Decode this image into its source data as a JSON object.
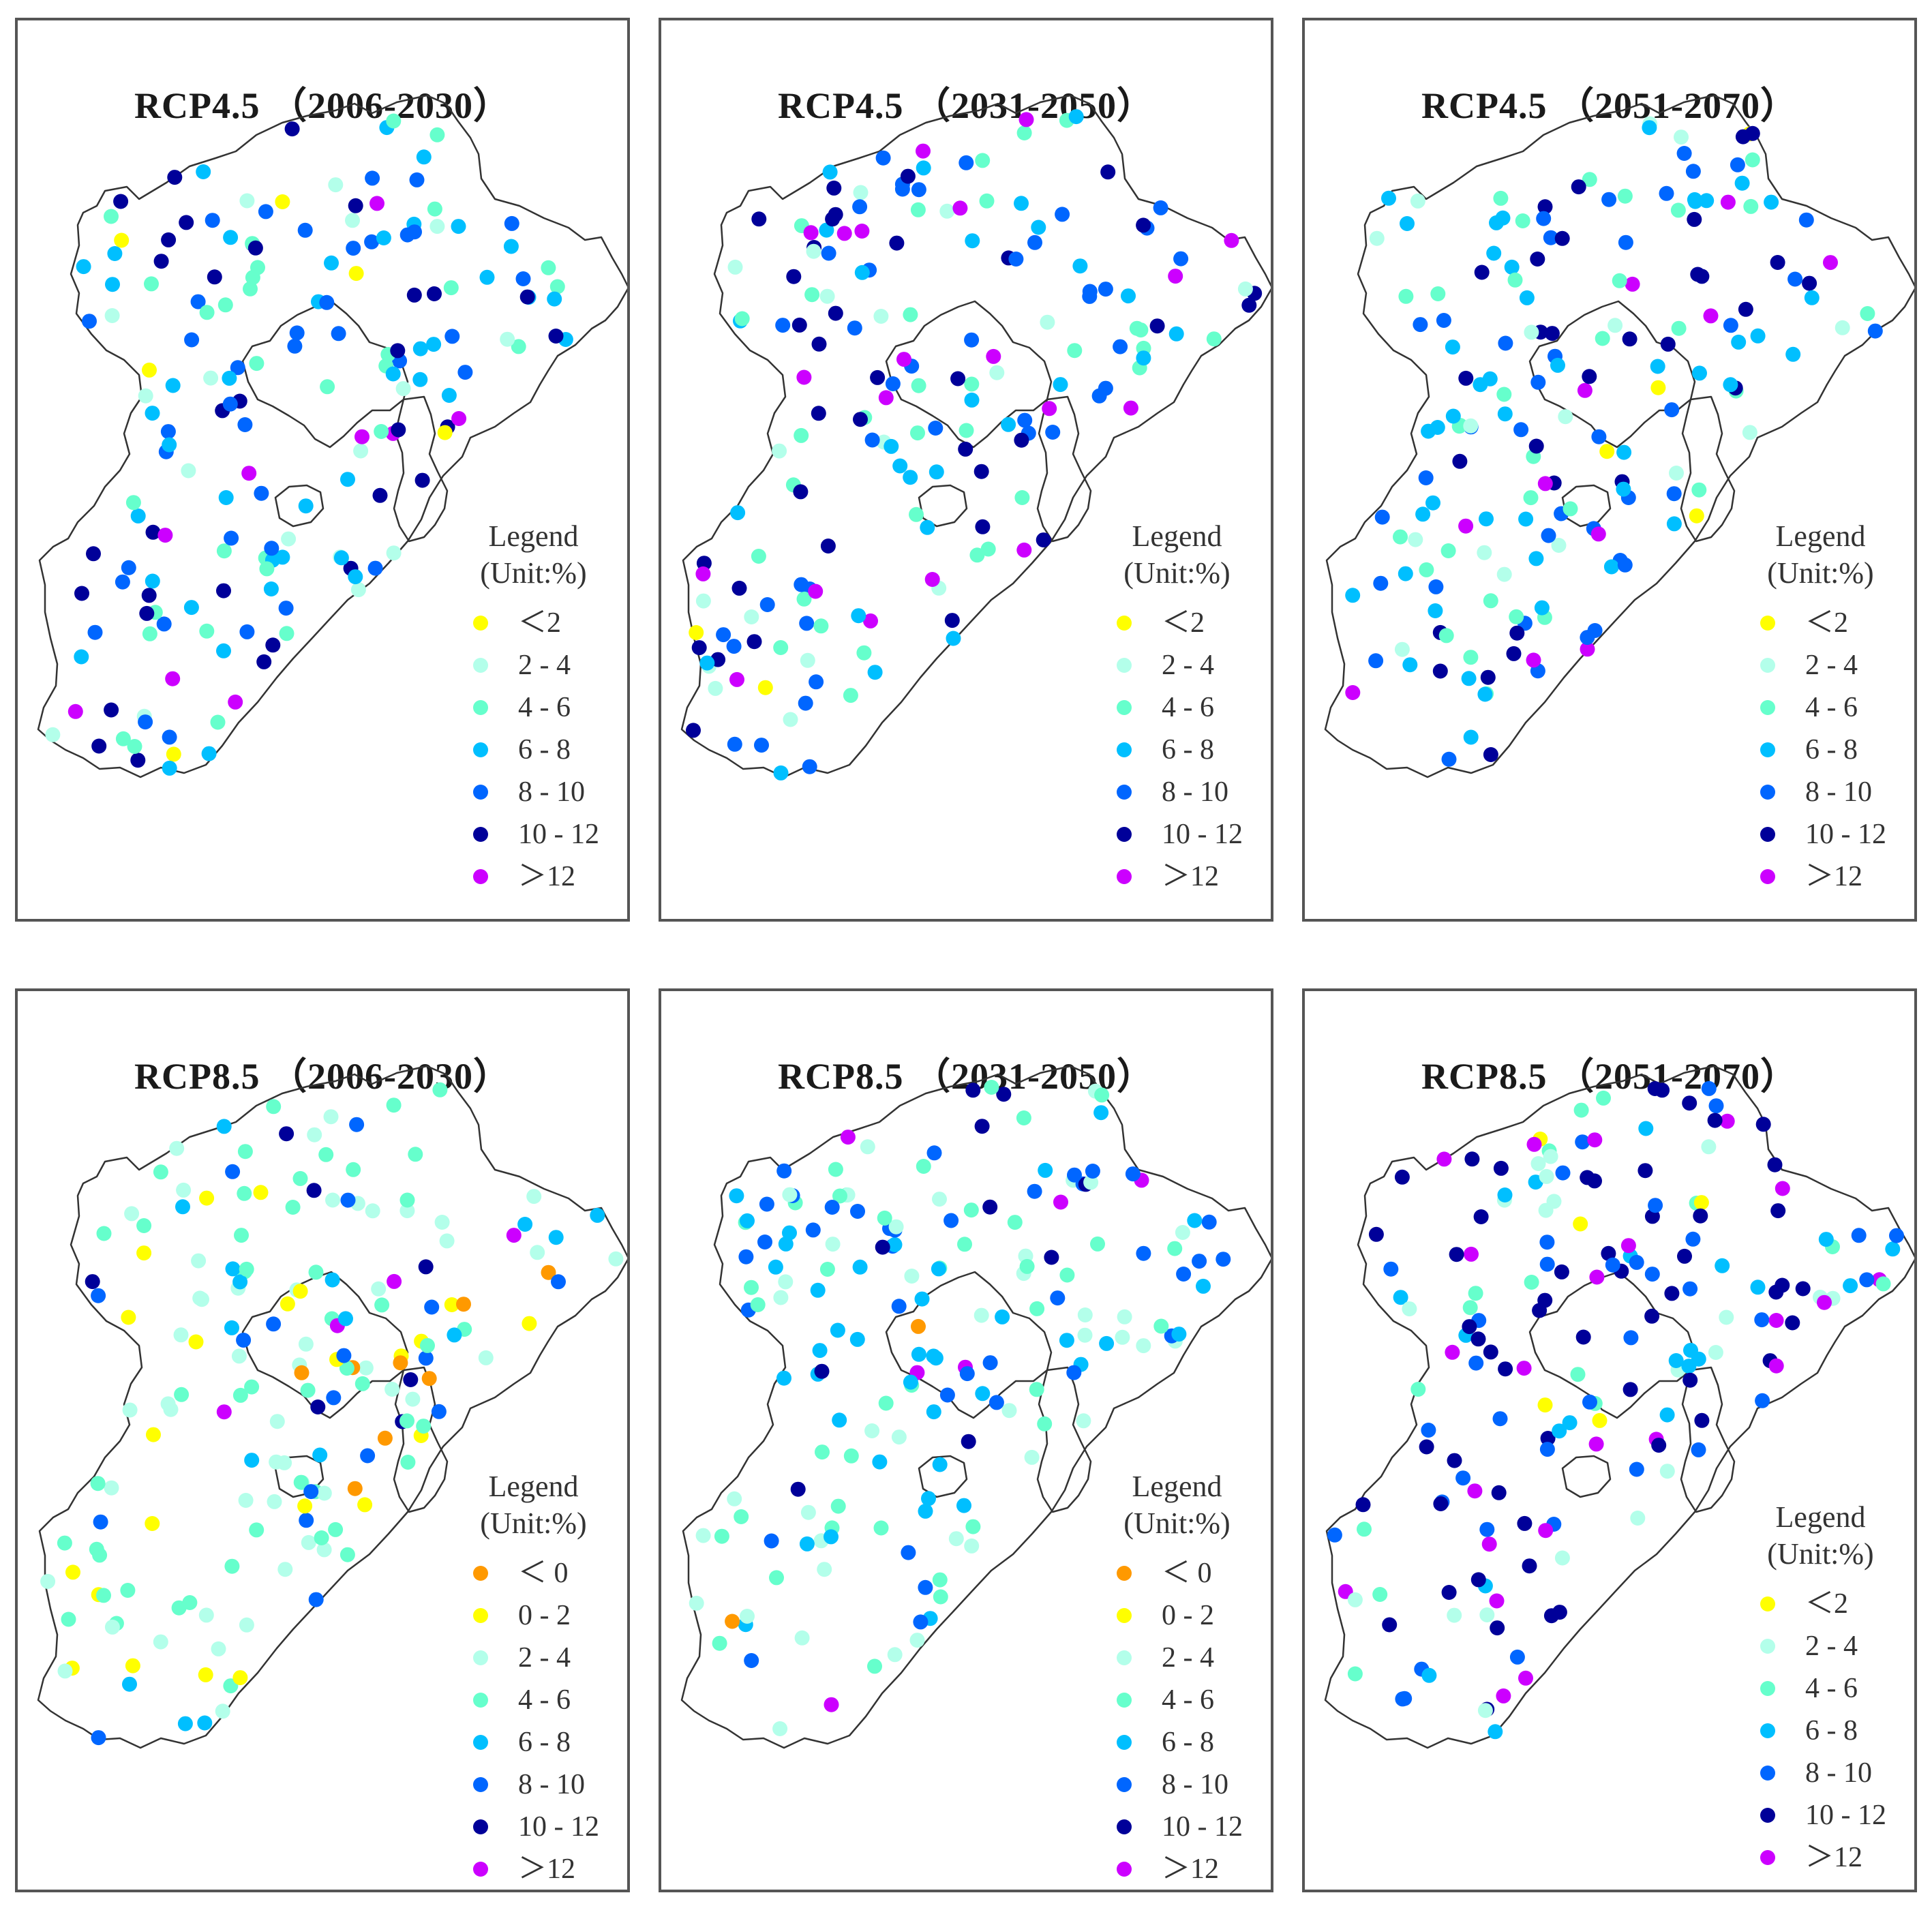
{
  "colors": {
    "lt0": "#ff9900",
    "lt2": "#ffff00",
    "2-4": "#b3ffea",
    "4-6": "#66ffcc",
    "6-8": "#00bfff",
    "8-10": "#0066ff",
    "10-12": "#000099",
    "gt12": "#cc00ff"
  },
  "panels": [
    {
      "title": "RCP4.5 （2006-2030）",
      "legend": {
        "title": "Legend",
        "unit": "(Unit:%)",
        "items": [
          {
            "label": "＜2",
            "cls": "lt2"
          },
          {
            "label": "2 - 4",
            "cls": "2-4"
          },
          {
            "label": "4 - 6",
            "cls": "4-6"
          },
          {
            "label": "6 - 8",
            "cls": "6-8"
          },
          {
            "label": "8 - 10",
            "cls": "8-10"
          },
          {
            "label": "10 - 12",
            "cls": "10-12"
          },
          {
            "label": "＞12",
            "cls": "gt12"
          }
        ]
      }
    },
    {
      "title": "RCP4.5 （2031-2050）",
      "legend": {
        "title": "Legend",
        "unit": "(Unit:%)",
        "items": [
          {
            "label": "＜2",
            "cls": "lt2"
          },
          {
            "label": "2 - 4",
            "cls": "2-4"
          },
          {
            "label": "4 - 6",
            "cls": "4-6"
          },
          {
            "label": "6 - 8",
            "cls": "6-8"
          },
          {
            "label": "8 - 10",
            "cls": "8-10"
          },
          {
            "label": "10 - 12",
            "cls": "10-12"
          },
          {
            "label": "＞12",
            "cls": "gt12"
          }
        ]
      }
    },
    {
      "title": "RCP4.5 （2051-2070）",
      "legend": {
        "title": "Legend",
        "unit": "(Unit:%)",
        "items": [
          {
            "label": "＜2",
            "cls": "lt2"
          },
          {
            "label": "2 - 4",
            "cls": "2-4"
          },
          {
            "label": "4 - 6",
            "cls": "4-6"
          },
          {
            "label": "6 - 8",
            "cls": "6-8"
          },
          {
            "label": "8 - 10",
            "cls": "8-10"
          },
          {
            "label": "10 - 12",
            "cls": "10-12"
          },
          {
            "label": "＞12",
            "cls": "gt12"
          }
        ]
      }
    },
    {
      "title": "RCP8.5 （2006-2030）",
      "legend": {
        "title": "Legend",
        "unit": "(Unit:%)",
        "items": [
          {
            "label": "＜ 0",
            "cls": "lt0"
          },
          {
            "label": "0 - 2",
            "cls": "lt2"
          },
          {
            "label": "2 - 4",
            "cls": "2-4"
          },
          {
            "label": "4 - 6",
            "cls": "4-6"
          },
          {
            "label": "6 - 8",
            "cls": "6-8"
          },
          {
            "label": "8 - 10",
            "cls": "8-10"
          },
          {
            "label": "10 - 12",
            "cls": "10-12"
          },
          {
            "label": "＞12",
            "cls": "gt12"
          }
        ]
      }
    },
    {
      "title": "RCP8.5 （2031-2050）",
      "legend": {
        "title": "Legend",
        "unit": "(Unit:%)",
        "items": [
          {
            "label": "＜ 0",
            "cls": "lt0"
          },
          {
            "label": "0 - 2",
            "cls": "lt2"
          },
          {
            "label": "2 - 4",
            "cls": "2-4"
          },
          {
            "label": "4 - 6",
            "cls": "4-6"
          },
          {
            "label": "6 - 8",
            "cls": "6-8"
          },
          {
            "label": "8 - 10",
            "cls": "8-10"
          },
          {
            "label": "10 - 12",
            "cls": "10-12"
          },
          {
            "label": "＞12",
            "cls": "gt12"
          }
        ]
      }
    },
    {
      "title": "RCP8.5 （2051-2070）",
      "legend": {
        "title": "Legend",
        "unit": "(Unit:%)",
        "items": [
          {
            "label": "＜2",
            "cls": "lt2"
          },
          {
            "label": "2 - 4",
            "cls": "2-4"
          },
          {
            "label": "4 - 6",
            "cls": "4-6"
          },
          {
            "label": "6 - 8",
            "cls": "6-8"
          },
          {
            "label": "8 - 10",
            "cls": "8-10"
          },
          {
            "label": "10 - 12",
            "cls": "10-12"
          },
          {
            "label": "＞12",
            "cls": "gt12"
          }
        ]
      }
    }
  ]
}
